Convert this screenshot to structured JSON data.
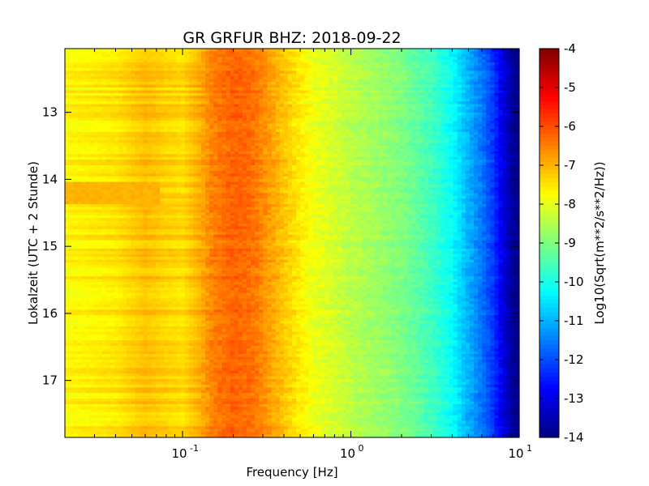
{
  "chart_data": {
    "type": "heatmap",
    "title": "GR GRFUR BHZ: 2018-09-22",
    "xlabel": "Frequency [Hz]",
    "ylabel": "Lokalzeit (UTC + 2 Stunde)",
    "x_scale": "log",
    "xlim": [
      0.02,
      10
    ],
    "ylim": [
      17.85,
      12.05
    ],
    "y_inverted": true,
    "x_ticks": [
      {
        "value": 0.1,
        "base": "10",
        "exp": "-1"
      },
      {
        "value": 1,
        "base": "10",
        "exp": "0"
      },
      {
        "value": 10,
        "base": "10",
        "exp": "1"
      }
    ],
    "y_ticks": [
      {
        "value": 13,
        "label": "13"
      },
      {
        "value": 14,
        "label": "14"
      },
      {
        "value": 15,
        "label": "15"
      },
      {
        "value": 16,
        "label": "16"
      },
      {
        "value": 17,
        "label": "17"
      }
    ],
    "colorbar": {
      "label": "Log10(Sqrt(m**2/s**2/Hz))",
      "colormap": "jet",
      "range": [
        -14,
        -4
      ],
      "ticks": [
        "-4",
        "-5",
        "-6",
        "-7",
        "-8",
        "-9",
        "-10",
        "-11",
        "-12",
        "-13",
        "-14"
      ]
    },
    "spectrum_profile": {
      "frequency_hz": [
        0.02,
        0.04,
        0.06,
        0.08,
        0.1,
        0.13,
        0.15,
        0.2,
        0.25,
        0.3,
        0.4,
        0.6,
        1.0,
        2.0,
        3.0,
        4.0,
        5.0,
        6.0,
        7.0,
        8.0,
        9.0,
        10.0
      ],
      "level": [
        -7.7,
        -7.5,
        -7.1,
        -7.3,
        -7.4,
        -6.9,
        -6.5,
        -6.2,
        -6.3,
        -6.6,
        -7.2,
        -7.9,
        -8.4,
        -9.0,
        -9.6,
        -10.2,
        -11.0,
        -11.6,
        -12.2,
        -13.0,
        -13.7,
        -14.0
      ]
    },
    "anomaly": {
      "time_range": [
        14.05,
        14.35
      ],
      "frequency_range": [
        0.02,
        0.075
      ],
      "level": -7.0
    }
  }
}
